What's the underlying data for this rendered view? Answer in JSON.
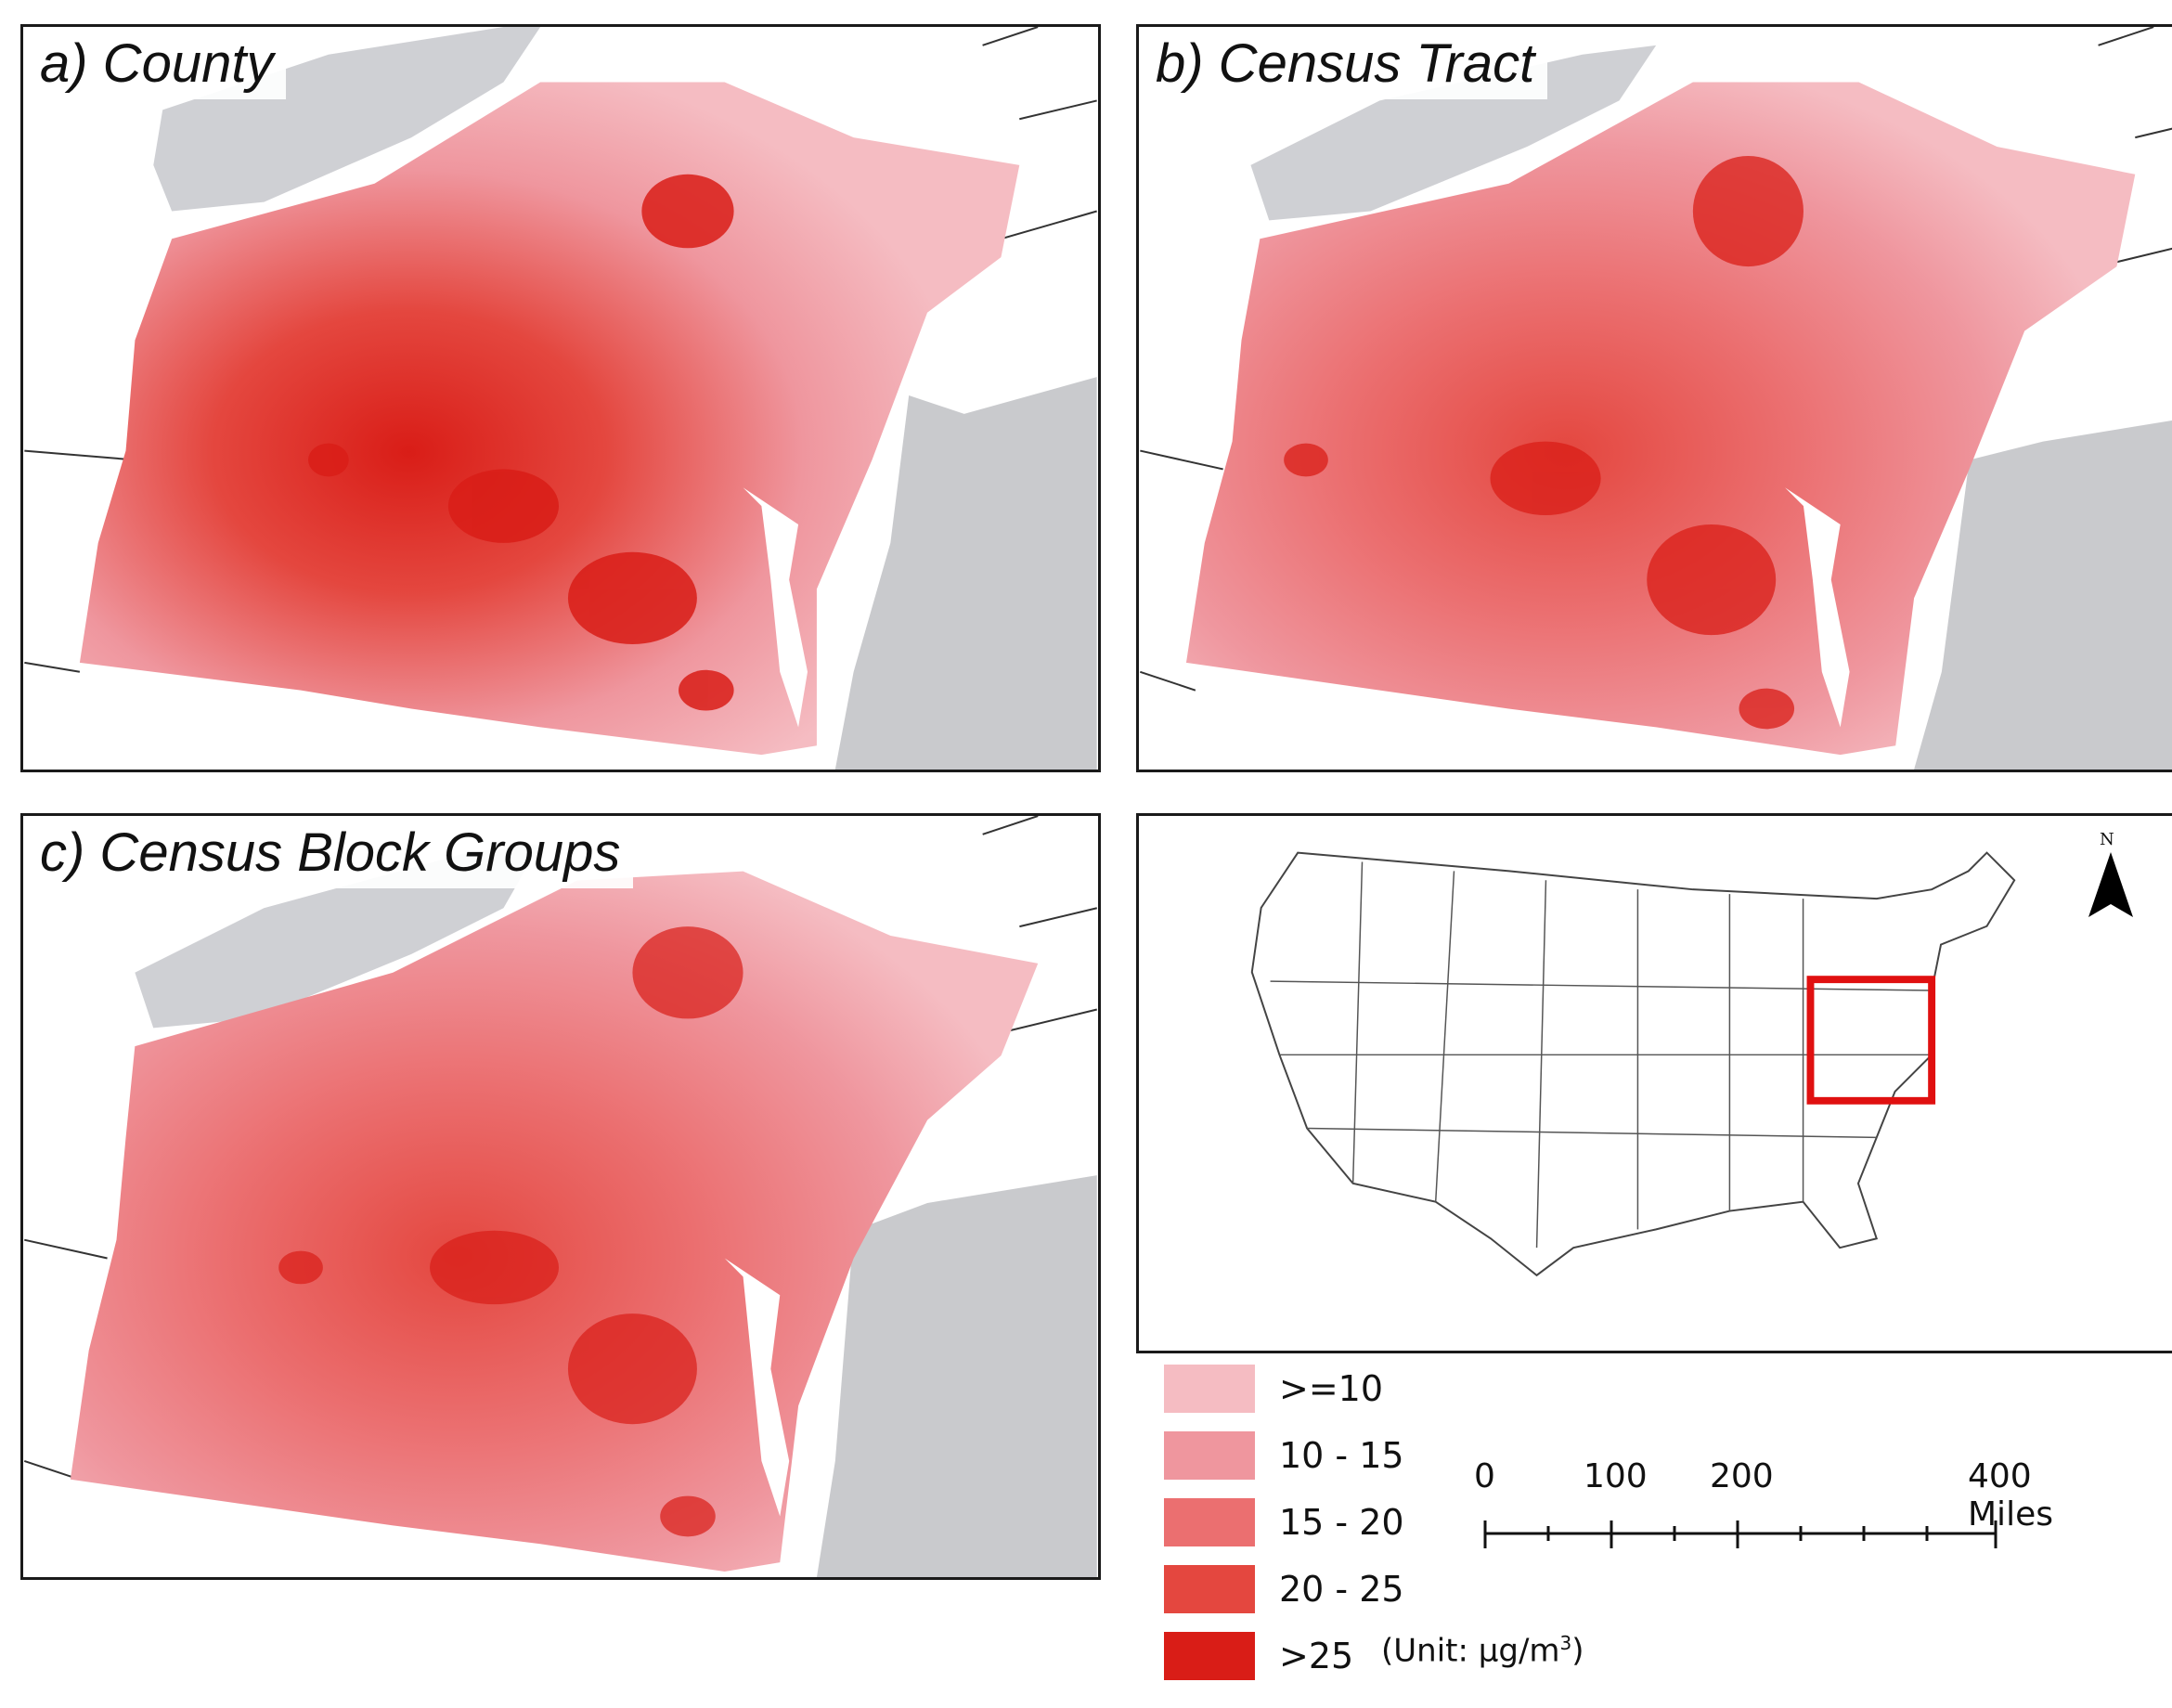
{
  "panels": {
    "a": {
      "title": "a) County"
    },
    "b": {
      "title": "b) Census Tract"
    },
    "c": {
      "title": "c) Census Block Groups"
    }
  },
  "legend": {
    "items": [
      {
        "label": ">=10",
        "color": "#f5bcc2"
      },
      {
        "label": "10 - 15",
        "color": "#ef969e"
      },
      {
        "label": "15 - 20",
        "color": "#eb6f70"
      },
      {
        "label": "20 - 25",
        "color": "#e4473f"
      },
      {
        "label": ">25",
        "color": "#d91d17"
      }
    ],
    "unit_prefix": "(Unit: μg/m",
    "unit_sup": "3",
    "unit_suffix": ")"
  },
  "scale": {
    "labels": [
      "0",
      "100",
      "200",
      "400 Miles"
    ]
  },
  "north_arrow": {
    "label": "N"
  },
  "colors": {
    "lake": "#cfd0d4",
    "ocean": "#c9cacd",
    "land": "#ffffff",
    "boundary": "#333333",
    "highlight_box": "#e01010"
  }
}
